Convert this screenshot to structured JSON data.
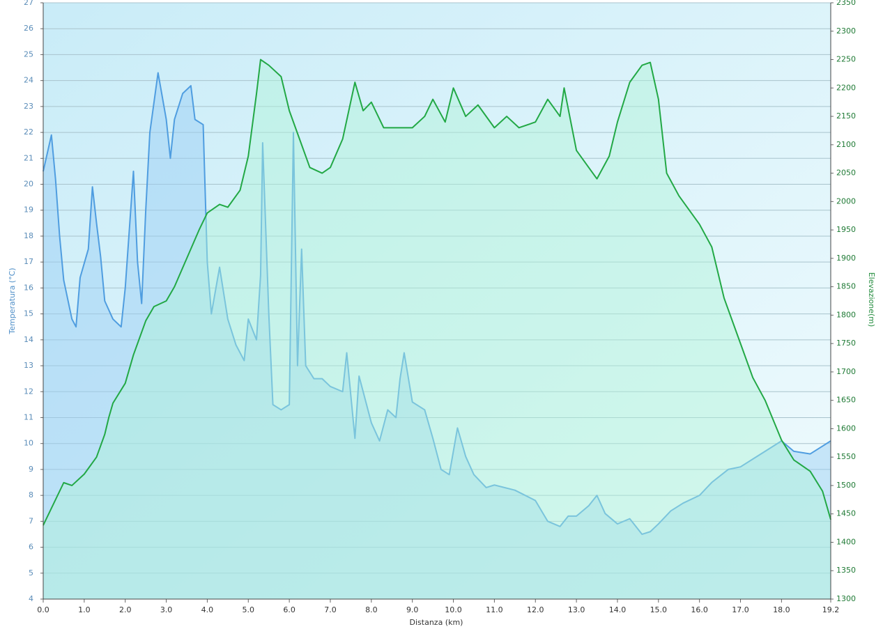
{
  "chart_data": {
    "type": "line",
    "x_label": "Distanza  (km)",
    "y_label": "Temperatura (°C)",
    "y2_label": "Elevazione(m)",
    "xlim": [
      0,
      19.2
    ],
    "xticks": [
      {
        "value": 0,
        "label": "0.0"
      },
      {
        "value": 1,
        "label": "1.0"
      },
      {
        "value": 2,
        "label": "2.0"
      },
      {
        "value": 3,
        "label": "3.0"
      },
      {
        "value": 4,
        "label": "4.0"
      },
      {
        "value": 5,
        "label": "5.0"
      },
      {
        "value": 6,
        "label": "6.0"
      },
      {
        "value": 7,
        "label": "7.0"
      },
      {
        "value": 8,
        "label": "8.0"
      },
      {
        "value": 9,
        "label": "9.0"
      },
      {
        "value": 10,
        "label": "10.0"
      },
      {
        "value": 11,
        "label": "11.0"
      },
      {
        "value": 12,
        "label": "12.0"
      },
      {
        "value": 13,
        "label": "13.0"
      },
      {
        "value": 14,
        "label": "14.0"
      },
      {
        "value": 15,
        "label": "15.0"
      },
      {
        "value": 16,
        "label": "16.0"
      },
      {
        "value": 17,
        "label": "17.0"
      },
      {
        "value": 18,
        "label": "18.0"
      },
      19.2
    ],
    "ylim": [
      4,
      27
    ],
    "yticks": [
      4,
      5,
      6,
      7,
      8,
      9,
      10,
      11,
      12,
      13,
      14,
      15,
      16,
      17,
      18,
      19,
      20,
      21,
      22,
      23,
      24,
      25,
      26,
      27
    ],
    "y2lim": [
      1300,
      2350
    ],
    "y2ticks": [
      1300,
      1350,
      1400,
      1450,
      1500,
      1550,
      1600,
      1650,
      1700,
      1750,
      1800,
      1850,
      1900,
      1950,
      2000,
      2050,
      2100,
      2150,
      2200,
      2250,
      2300,
      2350
    ],
    "grid": true,
    "series": [
      {
        "color": "#4f9de0",
        "axis": "y",
        "x": [
          0,
          0.2,
          0.3,
          0.4,
          0.5,
          0.7,
          0.8,
          0.9,
          1.1,
          1.2,
          1.3,
          1.4,
          1.5,
          1.7,
          1.9,
          2.0,
          2.2,
          2.3,
          2.4,
          2.5,
          2.6,
          2.8,
          3.0,
          3.1,
          3.2,
          3.4,
          3.6,
          3.7,
          3.9,
          4.0,
          4.1,
          4.3,
          4.5,
          4.7,
          4.9,
          5.0,
          5.2,
          5.3,
          5.35,
          5.5,
          5.6,
          5.8,
          6.0,
          6.1,
          6.2,
          6.3,
          6.4,
          6.6,
          6.8,
          7.0,
          7.3,
          7.4,
          7.6,
          7.7,
          8.0,
          8.2,
          8.4,
          8.6,
          8.7,
          8.8,
          9.0,
          9.3,
          9.5,
          9.7,
          9.9,
          10.1,
          10.3,
          10.5,
          10.8,
          11.0,
          11.5,
          12.0,
          12.3,
          12.6,
          12.8,
          13.0,
          13.3,
          13.5,
          13.7,
          14.0,
          14.3,
          14.6,
          14.8,
          15.0,
          15.3,
          15.6,
          16.0,
          16.3,
          16.7,
          17.0,
          17.3,
          17.6,
          18.0,
          18.3,
          18.7,
          19.0,
          19.2
        ],
        "values": [
          20.5,
          21.9,
          20.2,
          18,
          16.3,
          14.8,
          14.5,
          16.4,
          17.5,
          19.9,
          18.5,
          17.2,
          15.5,
          14.8,
          14.5,
          16,
          20.5,
          17,
          15.4,
          19,
          22,
          24.3,
          22.5,
          21,
          22.5,
          23.5,
          23.8,
          22.5,
          22.3,
          17,
          15,
          16.8,
          14.8,
          13.8,
          13.2,
          14.8,
          14,
          16.5,
          21.6,
          15,
          11.5,
          11.3,
          11.5,
          22,
          13,
          17.5,
          13,
          12.5,
          12.5,
          12.2,
          12,
          13.5,
          10.2,
          12.6,
          10.8,
          10.1,
          11.3,
          11,
          12.5,
          13.5,
          11.6,
          11.3,
          10.2,
          9,
          8.8,
          10.6,
          9.5,
          8.8,
          8.3,
          8.4,
          8.2,
          7.8,
          7,
          6.8,
          7.2,
          7.2,
          7.6,
          8,
          7.3,
          6.9,
          7.1,
          6.5,
          6.6,
          6.9,
          7.4,
          7.7,
          8,
          8.5,
          9,
          9.1,
          9.4,
          9.7,
          10.1,
          9.7,
          9.6,
          9.9,
          10.1
        ]
      },
      {
        "color": "#22a845",
        "axis": "y2",
        "x": [
          0,
          0.5,
          0.7,
          1.0,
          1.3,
          1.5,
          1.6,
          1.7,
          2.0,
          2.2,
          2.5,
          2.7,
          3.0,
          3.2,
          3.5,
          3.8,
          4.0,
          4.3,
          4.5,
          4.8,
          5.0,
          5.2,
          5.3,
          5.5,
          5.8,
          6.0,
          6.2,
          6.5,
          6.8,
          7.0,
          7.3,
          7.6,
          7.8,
          8.0,
          8.3,
          8.6,
          9.0,
          9.3,
          9.5,
          9.8,
          10.0,
          10.3,
          10.6,
          11.0,
          11.3,
          11.6,
          12.0,
          12.3,
          12.6,
          12.7,
          13.0,
          13.3,
          13.5,
          13.8,
          14.0,
          14.3,
          14.6,
          14.8,
          15.0,
          15.2,
          15.5,
          16.0,
          16.3,
          16.6,
          17.0,
          17.3,
          17.6,
          18.0,
          18.3,
          18.7,
          19.0,
          19.2
        ],
        "values": [
          1430,
          1505,
          1500,
          1520,
          1550,
          1590,
          1620,
          1645,
          1680,
          1730,
          1790,
          1815,
          1825,
          1850,
          1900,
          1950,
          1980,
          1995,
          1990,
          2020,
          2080,
          2190,
          2250,
          2240,
          2220,
          2160,
          2120,
          2060,
          2050,
          2060,
          2110,
          2210,
          2160,
          2175,
          2130,
          2130,
          2130,
          2150,
          2180,
          2140,
          2200,
          2150,
          2170,
          2130,
          2150,
          2130,
          2140,
          2180,
          2150,
          2200,
          2090,
          2060,
          2040,
          2080,
          2140,
          2210,
          2240,
          2245,
          2180,
          2050,
          2010,
          1960,
          1920,
          1830,
          1750,
          1690,
          1650,
          1580,
          1545,
          1525,
          1490,
          1440
        ]
      }
    ]
  }
}
